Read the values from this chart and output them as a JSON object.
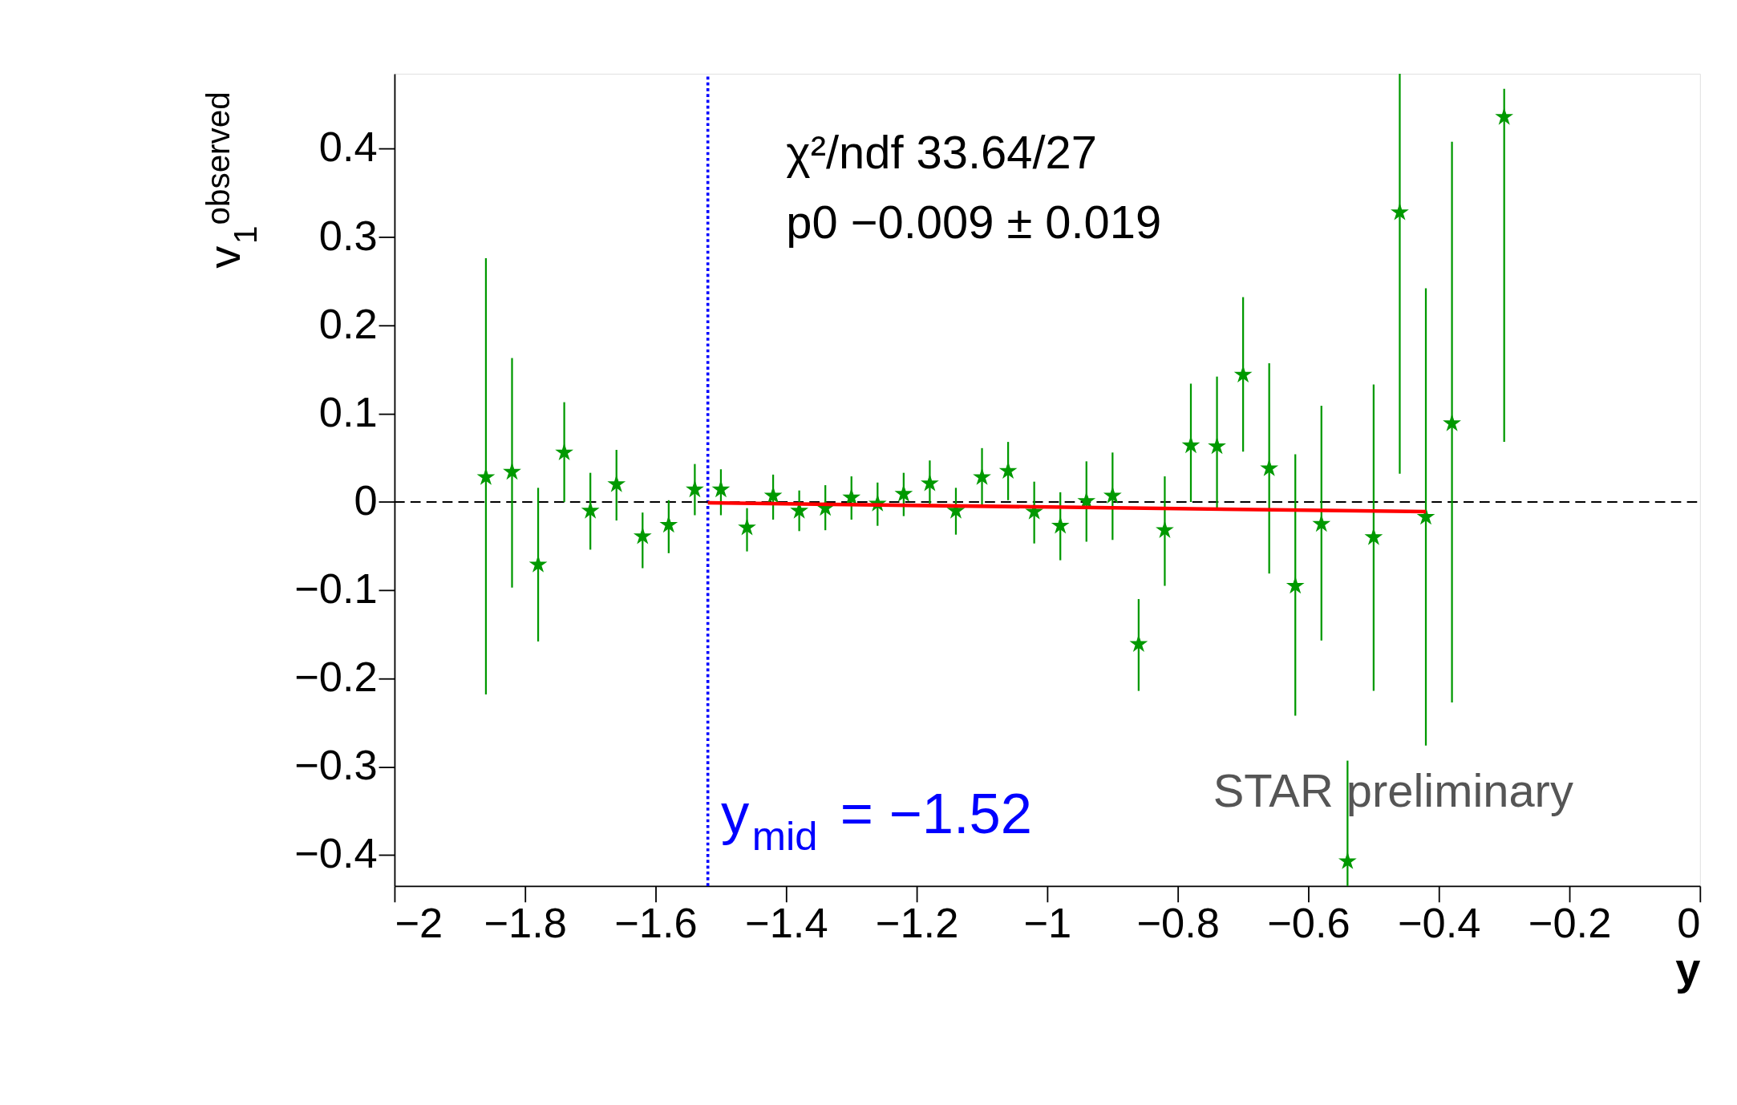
{
  "chart_data": {
    "type": "scatter",
    "xlabel": "y",
    "ylabel": "v$_{1}$$^{observed}$",
    "xlim": [
      -2,
      0
    ],
    "xticks": [
      {
        "value": -2,
        "label": "−2"
      },
      {
        "value": -1.8,
        "label": "−1.8"
      },
      {
        "value": -1.6,
        "label": "−1.6"
      },
      {
        "value": -1.4,
        "label": "−1.4"
      },
      {
        "value": -1.2,
        "label": "−1.2"
      },
      {
        "value": -1,
        "label": "−1"
      },
      {
        "value": -0.8,
        "label": "−0.8"
      },
      {
        "value": -0.6,
        "label": "−0.6"
      },
      {
        "value": -0.4,
        "label": "−0.4"
      },
      {
        "value": -0.2,
        "label": "−0.2"
      },
      0
    ],
    "ylim": [
      -0.435,
      0.485
    ],
    "yticks": [
      {
        "value": -0.4,
        "label": "−0.4"
      },
      {
        "value": -0.3,
        "label": "−0.3"
      },
      {
        "value": -0.2,
        "label": "−0.2"
      },
      {
        "value": -0.1,
        "label": "−0.1"
      },
      0,
      0.1,
      0.2,
      0.3,
      0.4
    ],
    "grid": false,
    "marker": "star",
    "series": [
      {
        "color": "#009900",
        "x": [
          -1.86,
          -1.82,
          -1.78,
          -1.74,
          -1.7,
          -1.66,
          -1.62,
          -1.58,
          -1.54,
          -1.5,
          -1.46,
          -1.42,
          -1.38,
          -1.34,
          -1.3,
          -1.26,
          -1.22,
          -1.18,
          -1.14,
          -1.1,
          -1.06,
          -1.02,
          -0.98,
          -0.94,
          -0.9,
          -0.86,
          -0.82,
          -0.78,
          -0.74,
          -0.7,
          -0.66,
          -0.62,
          -0.58,
          -0.54,
          -0.5,
          -0.46,
          -0.42,
          -0.38,
          -0.3
        ],
        "values": [
          0.028,
          0.034,
          -0.071,
          0.056,
          -0.01,
          0.02,
          -0.039,
          -0.026,
          0.014,
          0.014,
          -0.029,
          0.007,
          -0.01,
          -0.007,
          0.005,
          -0.002,
          0.009,
          0.021,
          -0.01,
          0.028,
          0.035,
          -0.011,
          -0.027,
          0.001,
          0.007,
          -0.161,
          -0.032,
          0.064,
          0.063,
          0.144,
          0.038,
          -0.095,
          -0.025,
          -0.407,
          -0.04,
          0.328,
          -0.017,
          0.089,
          0.436
        ],
        "errors": [
          [
            -0.218,
            0.276
          ],
          [
            -0.097,
            0.163
          ],
          [
            -0.158,
            0.016
          ],
          [
            0.0,
            0.113
          ],
          [
            -0.054,
            0.033
          ],
          [
            -0.021,
            0.059
          ],
          [
            -0.075,
            -0.012
          ],
          [
            -0.058,
            0.002
          ],
          [
            -0.015,
            0.043
          ],
          [
            -0.015,
            0.037
          ],
          [
            -0.056,
            -0.007
          ],
          [
            -0.02,
            0.031
          ],
          [
            -0.033,
            0.013
          ],
          [
            -0.032,
            0.019
          ],
          [
            -0.02,
            0.029
          ],
          [
            -0.027,
            0.022
          ],
          [
            -0.016,
            0.033
          ],
          [
            -0.004,
            0.047
          ],
          [
            -0.037,
            0.016
          ],
          [
            -0.004,
            0.061
          ],
          [
            0.002,
            0.068
          ],
          [
            -0.047,
            0.023
          ],
          [
            -0.066,
            0.011
          ],
          [
            -0.045,
            0.046
          ],
          [
            -0.043,
            0.056
          ],
          [
            -0.214,
            -0.11
          ],
          [
            -0.095,
            0.029
          ],
          [
            0.0,
            0.134
          ],
          [
            -0.009,
            0.142
          ],
          [
            0.057,
            0.232
          ],
          [
            -0.081,
            0.157
          ],
          [
            -0.242,
            0.054
          ],
          [
            -0.157,
            0.109
          ],
          [
            -0.435,
            -0.293
          ],
          [
            -0.214,
            0.133
          ],
          [
            0.032,
            0.485
          ],
          [
            -0.276,
            0.242
          ],
          [
            -0.227,
            0.408
          ],
          [
            0.068,
            0.468
          ]
        ]
      },
      {
        "type": "line",
        "color": "#ff0000",
        "line_style": "solid",
        "marker": "none",
        "x": [
          -1.52,
          -0.42
        ],
        "values": [
          -0.001,
          -0.011
        ]
      }
    ],
    "ref_lines": [
      {
        "axis": "x",
        "value": -1.52,
        "label": "y$_{mid}$ = −1.52",
        "color": "#0000ff",
        "line_style": "dotted"
      },
      {
        "axis": "y",
        "value": 0,
        "color": "#000000",
        "line_style": "dashed"
      }
    ],
    "annotations": [
      "χ²/ndf        33.64/27",
      "p0     −0.009 ± 0.019",
      "STAR preliminary"
    ]
  }
}
